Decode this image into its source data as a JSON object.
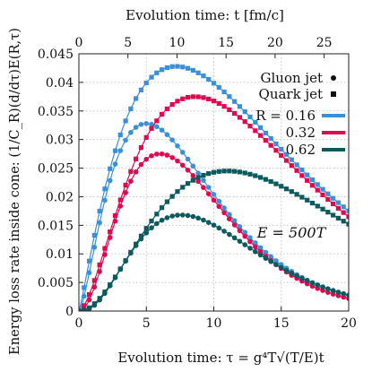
{
  "chart_data": {
    "type": "line",
    "xlabel": "Evolution time: τ = g⁴T√(T/E)t",
    "x2label": "Evolution time: t [fm/c]",
    "ylabel": "Energy loss rate inside cone: (1/C_R)(d/dτ)E(R,τ)",
    "xlim": [
      0,
      20
    ],
    "ylim": [
      0,
      0.045
    ],
    "x2lim": [
      0,
      27.5
    ],
    "xticks": [
      "0",
      "5",
      "10",
      "15",
      "20"
    ],
    "x2ticks": [
      "0",
      "5",
      "10",
      "15",
      "20",
      "25"
    ],
    "yticks": [
      "0",
      "0.005",
      "0.01",
      "0.015",
      "0.02",
      "0.025",
      "0.03",
      "0.035",
      "0.04",
      "0.045"
    ],
    "grid": true,
    "legend": {
      "position": "top-right",
      "markers": [
        {
          "label": "Gluon jet",
          "marker": "circle"
        },
        {
          "label": "Quark jet",
          "marker": "square"
        }
      ],
      "lines": [
        {
          "label": "R = 0.16",
          "color": "#3a8fd9"
        },
        {
          "label": "0.32",
          "color": "#e0094f"
        },
        {
          "label": "0.62",
          "color": "#0b5a5e"
        }
      ]
    },
    "annotation": "E = 500T",
    "series": [
      {
        "label": "R = 0.16",
        "marker": "square",
        "color": "#3a8fd9",
        "peak_x": 7.2,
        "peak_y": 0.0428,
        "x": [
          0,
          20
        ],
        "y": [
          0,
          0.0175
        ]
      },
      {
        "label": "R = 0.16",
        "marker": "circle",
        "color": "#3a8fd9",
        "peak_x": 5.0,
        "peak_y": 0.0328,
        "x": [
          0,
          20
        ],
        "y": [
          0,
          0.0027
        ]
      },
      {
        "label": "0.32",
        "marker": "square",
        "color": "#e0094f",
        "peak_x": 8.6,
        "peak_y": 0.0375,
        "x": [
          0,
          20
        ],
        "y": [
          0,
          0.0165
        ]
      },
      {
        "label": "0.32",
        "marker": "circle",
        "color": "#e0094f",
        "peak_x": 6.0,
        "peak_y": 0.0275,
        "x": [
          0,
          20
        ],
        "y": [
          0,
          0.0022
        ]
      },
      {
        "label": "0.62",
        "marker": "square",
        "color": "#0b5a5e",
        "peak_x": 11.0,
        "peak_y": 0.0245,
        "x": [
          0,
          20
        ],
        "y": [
          0,
          0.0152
        ]
      },
      {
        "label": "0.62",
        "marker": "circle",
        "color": "#0b5a5e",
        "peak_x": 7.6,
        "peak_y": 0.0168,
        "x": [
          0,
          20
        ],
        "y": [
          0,
          0.0028
        ]
      }
    ]
  }
}
